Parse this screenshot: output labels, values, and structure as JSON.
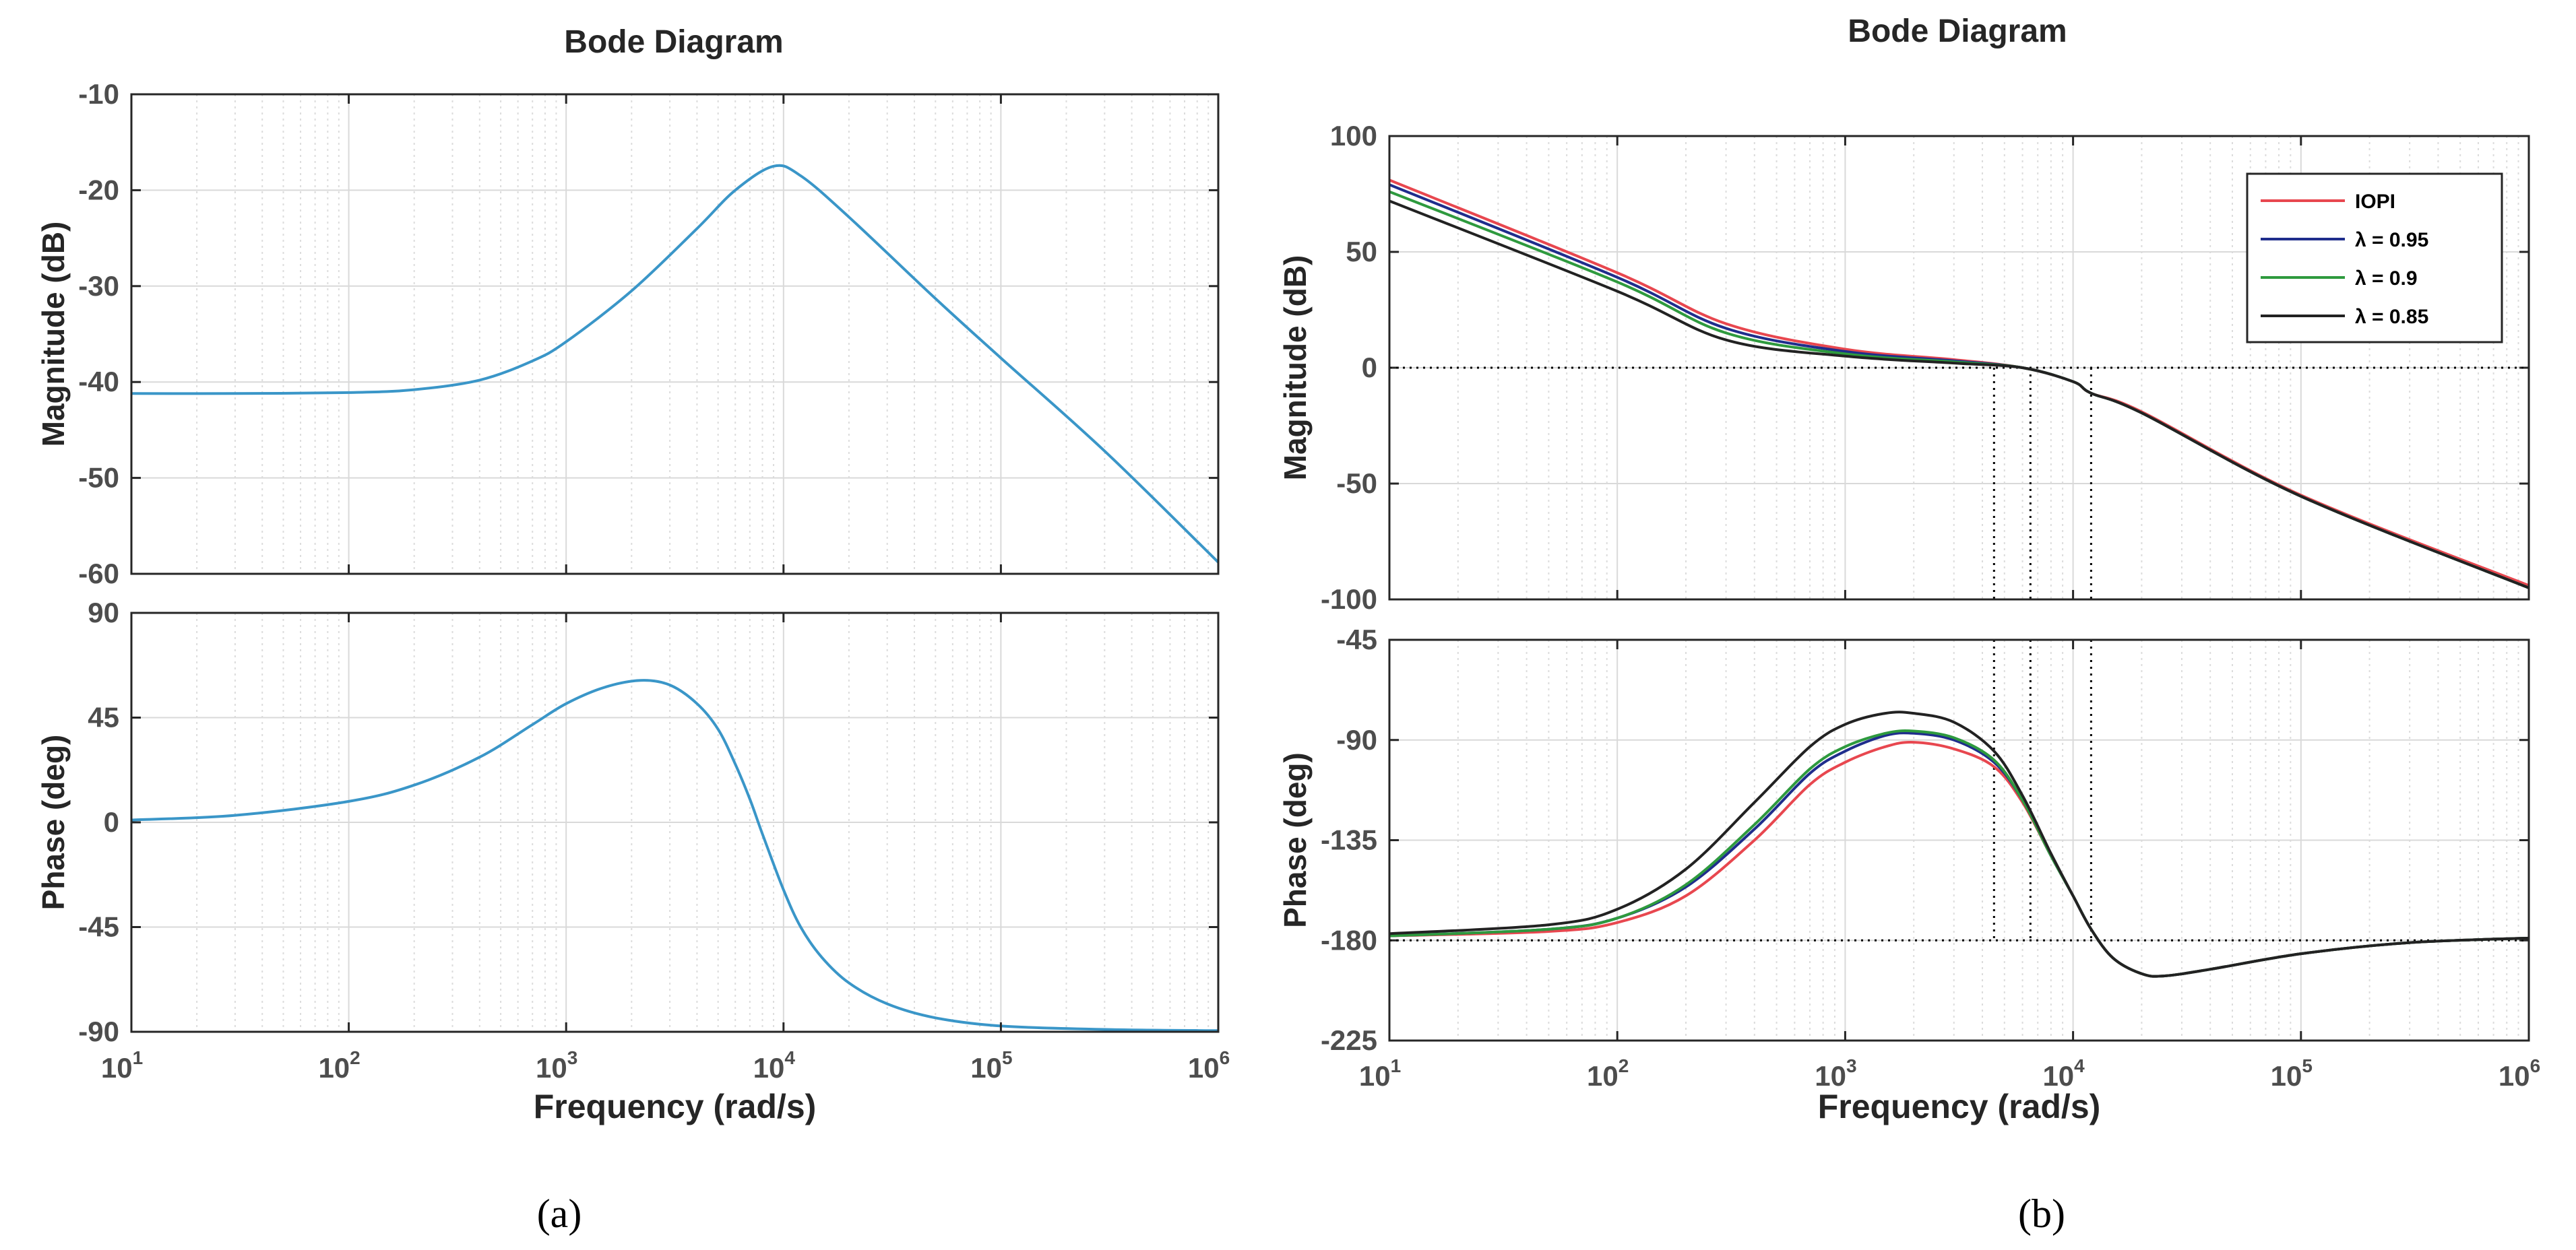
{
  "chart_data": [
    {
      "type": "line",
      "panel_caption": "(a)",
      "title": "Bode Diagram",
      "xlabel": "Frequency  (rad/s)",
      "xscale": "log",
      "xlim": [
        10,
        1000000
      ],
      "x_ticks": [
        {
          "base": "10",
          "exp": "1"
        },
        {
          "base": "10",
          "exp": "2"
        },
        {
          "base": "10",
          "exp": "3"
        },
        {
          "base": "10",
          "exp": "4"
        },
        {
          "base": "10",
          "exp": "5"
        },
        {
          "base": "10",
          "exp": "6"
        }
      ],
      "grid": true,
      "subplots": [
        {
          "name": "magnitude",
          "ylabel": "Magnitude (dB)",
          "ylim": [
            -60,
            -10
          ],
          "yticks": [
            "-10",
            "-20",
            "-30",
            "-40",
            "-50",
            "-60"
          ],
          "series": [
            {
              "color": "#3a96c8",
              "x": [
                10,
                30,
                100,
                200,
                400,
                700,
                1000,
                2000,
                4000,
                6000,
                9000,
                12000,
                20000,
                50000,
                100000,
                300000,
                1000000
              ],
              "values": [
                -41.2,
                -41.2,
                -41.1,
                -40.8,
                -39.8,
                -37.8,
                -35.8,
                -30.5,
                -24.0,
                -20.0,
                -17.5,
                -18.5,
                -22.8,
                -31.3,
                -37.5,
                -47.2,
                -58.8
              ]
            }
          ]
        },
        {
          "name": "phase",
          "ylabel": "Phase (deg)",
          "ylim": [
            -90,
            90
          ],
          "yticks": [
            "90",
            "45",
            "0",
            "-45",
            "-90"
          ],
          "series": [
            {
              "color": "#3a96c8",
              "x": [
                10,
                30,
                100,
                200,
                400,
                700,
                1000,
                1500,
                2200,
                3000,
                4000,
                5000,
                6000,
                7000,
                8000,
                10000,
                12000,
                15000,
                20000,
                30000,
                50000,
                100000,
                300000,
                1000000
              ],
              "values": [
                1,
                3,
                9,
                16,
                28,
                42,
                51,
                58,
                61,
                59,
                51,
                40,
                25,
                10,
                -5,
                -29,
                -45,
                -58,
                -69,
                -78,
                -84,
                -87.5,
                -89,
                -89.5
              ]
            }
          ]
        }
      ]
    },
    {
      "type": "line",
      "panel_caption": "(b)",
      "title": "Bode Diagram",
      "xlabel": "Frequency  (rad/s)",
      "xscale": "log",
      "xlim": [
        10,
        1000000
      ],
      "x_ticks": [
        {
          "base": "10",
          "exp": "1"
        },
        {
          "base": "10",
          "exp": "2"
        },
        {
          "base": "10",
          "exp": "3"
        },
        {
          "base": "10",
          "exp": "4"
        },
        {
          "base": "10",
          "exp": "5"
        },
        {
          "base": "10",
          "exp": "6"
        }
      ],
      "grid": true,
      "legend": {
        "position": "top-right",
        "entries": [
          "IOPI",
          "λ = 0.95",
          "λ = 0.9",
          "λ = 0.85"
        ]
      },
      "subplots": [
        {
          "name": "magnitude",
          "ylabel": "Magnitude (dB)",
          "ylim": [
            -100,
            100
          ],
          "yticks": [
            "100",
            "50",
            "0",
            "-50",
            "-100"
          ],
          "reference_line": 0,
          "crossover_markers": [
            4500,
            6500,
            12000
          ],
          "series": [
            {
              "name": "IOPI",
              "color": "#e8474f",
              "x": [
                10,
                100,
                300,
                1000,
                3000,
                6000,
                10000,
                12000,
                20000,
                100000,
                1000000
              ],
              "values": [
                81,
                41,
                19,
                8,
                3.5,
                0,
                -6,
                -11,
                -19,
                -55,
                -94
              ]
            },
            {
              "name": "λ = 0.95",
              "color": "#1f2d8c",
              "x": [
                10,
                100,
                300,
                1000,
                3000,
                6000,
                10000,
                12000,
                20000,
                100000,
                1000000
              ],
              "values": [
                79,
                39,
                17,
                7,
                3,
                0,
                -6,
                -11,
                -19.5,
                -55.5,
                -95
              ]
            },
            {
              "name": "λ = 0.9",
              "color": "#2e9a3e",
              "x": [
                10,
                100,
                300,
                1000,
                3000,
                6000,
                10000,
                12000,
                20000,
                100000,
                1000000
              ],
              "values": [
                76,
                37,
                15,
                6,
                2.5,
                0,
                -6,
                -11,
                -19.5,
                -55.5,
                -95
              ]
            },
            {
              "name": "λ = 0.85",
              "color": "#222222",
              "x": [
                10,
                100,
                300,
                1000,
                3000,
                6000,
                10000,
                12000,
                20000,
                100000,
                1000000
              ],
              "values": [
                72,
                33,
                12,
                5,
                2,
                0,
                -6,
                -11,
                -19.5,
                -55.5,
                -95
              ]
            }
          ]
        },
        {
          "name": "phase",
          "ylabel": "Phase (deg)",
          "ylim": [
            -225,
            -45
          ],
          "yticks": [
            "-45",
            "-90",
            "-135",
            "-180",
            "-225"
          ],
          "reference_line": -180,
          "crossover_markers": [
            4500,
            6500,
            12000
          ],
          "series": [
            {
              "name": "IOPI",
              "color": "#e8474f",
              "x": [
                10,
                50,
                100,
                200,
                400,
                700,
                1000,
                1500,
                2000,
                3000,
                4500,
                6000,
                8000,
                10000,
                12000,
                15000,
                20000,
                25000,
                40000,
                100000,
                300000,
                1000000
              ],
              "values": [
                -178,
                -176,
                -172,
                -160,
                -135,
                -110,
                -100,
                -93,
                -91,
                -94,
                -102,
                -118,
                -142,
                -160,
                -175,
                -188,
                -195,
                -196,
                -193,
                -186,
                -181,
                -179
              ]
            },
            {
              "name": "λ = 0.95",
              "color": "#1f2d8c",
              "x": [
                10,
                50,
                100,
                200,
                400,
                700,
                1000,
                1500,
                2000,
                3000,
                4500,
                6000,
                8000,
                10000,
                12000,
                15000,
                20000,
                25000,
                40000,
                100000,
                300000,
                1000000
              ],
              "values": [
                -178,
                -175,
                -170,
                -156,
                -130,
                -105,
                -95,
                -88,
                -87,
                -90,
                -100,
                -117,
                -142,
                -160,
                -175,
                -188,
                -195,
                -196,
                -193,
                -186,
                -181,
                -179
              ]
            },
            {
              "name": "λ = 0.9",
              "color": "#2e9a3e",
              "x": [
                10,
                50,
                100,
                200,
                400,
                700,
                1000,
                1500,
                2000,
                3000,
                4500,
                6000,
                8000,
                10000,
                12000,
                15000,
                20000,
                25000,
                40000,
                100000,
                300000,
                1000000
              ],
              "values": [
                -178,
                -175,
                -170,
                -155,
                -128,
                -103,
                -93,
                -87,
                -86,
                -89,
                -99,
                -117,
                -142,
                -160,
                -175,
                -188,
                -195,
                -196,
                -193,
                -186,
                -181,
                -179
              ]
            },
            {
              "name": "λ = 0.85",
              "color": "#222222",
              "x": [
                10,
                50,
                100,
                200,
                400,
                700,
                1000,
                1500,
                2000,
                3000,
                4500,
                6000,
                8000,
                10000,
                12000,
                15000,
                20000,
                25000,
                40000,
                100000,
                300000,
                1000000
              ],
              "values": [
                -177,
                -173,
                -166,
                -148,
                -118,
                -93,
                -83,
                -78,
                -78,
                -82,
                -95,
                -115,
                -141,
                -160,
                -175,
                -188,
                -195,
                -196,
                -193,
                -186,
                -181,
                -179
              ]
            }
          ]
        }
      ]
    }
  ]
}
